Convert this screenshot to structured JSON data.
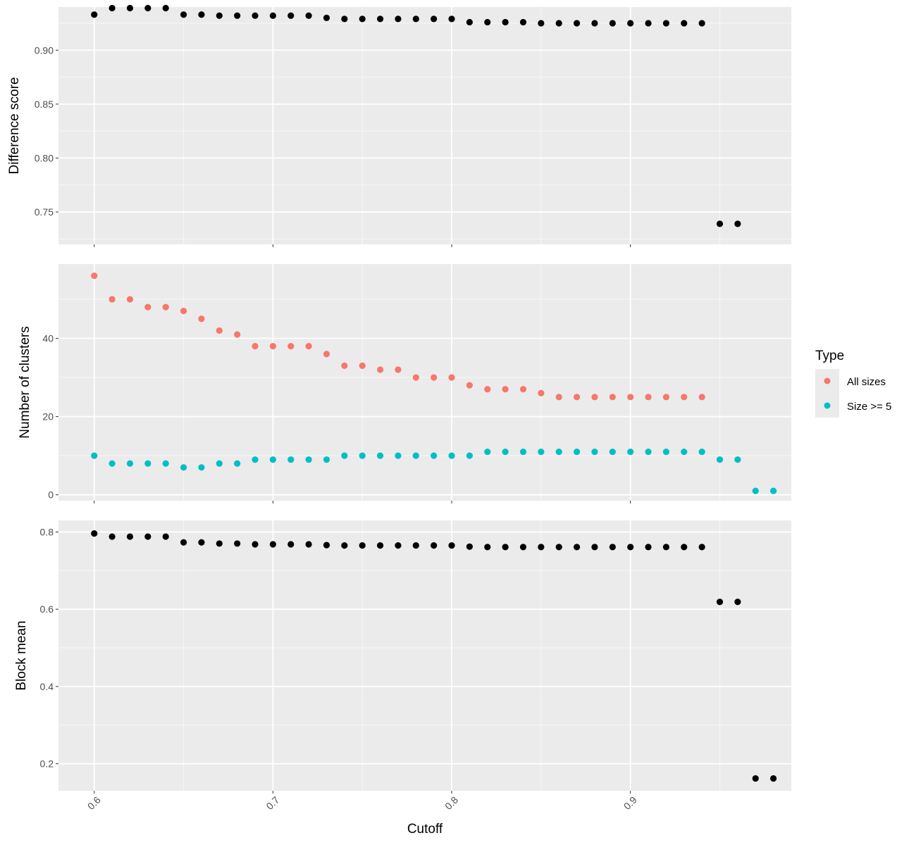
{
  "chart_data": {
    "type": "scatter",
    "x_axis": {
      "title": "Cutoff",
      "range": [
        0.58,
        0.99
      ],
      "ticks": [
        0.6,
        0.7,
        0.8,
        0.9
      ],
      "tick_labels": [
        "0.6",
        "0.7",
        "0.8",
        "0.9"
      ]
    },
    "panels": [
      {
        "ylabel": "Difference score",
        "ylim": [
          0.72,
          0.94
        ],
        "yticks": [
          0.75,
          0.8,
          0.85,
          0.9
        ],
        "ytick_labels": [
          "0.75",
          "0.80",
          "0.85",
          "0.90"
        ],
        "series": [
          {
            "color": "#000000",
            "x": [
              0.6,
              0.61,
              0.62,
              0.63,
              0.64,
              0.65,
              0.66,
              0.67,
              0.68,
              0.69,
              0.7,
              0.71,
              0.72,
              0.73,
              0.74,
              0.75,
              0.76,
              0.77,
              0.78,
              0.79,
              0.8,
              0.81,
              0.82,
              0.83,
              0.84,
              0.85,
              0.86,
              0.87,
              0.88,
              0.89,
              0.9,
              0.91,
              0.92,
              0.93,
              0.94,
              0.95,
              0.96
            ],
            "y": [
              0.933,
              0.939,
              0.939,
              0.939,
              0.939,
              0.933,
              0.933,
              0.932,
              0.932,
              0.932,
              0.932,
              0.932,
              0.932,
              0.93,
              0.929,
              0.929,
              0.929,
              0.929,
              0.929,
              0.929,
              0.929,
              0.926,
              0.926,
              0.926,
              0.926,
              0.925,
              0.925,
              0.925,
              0.925,
              0.925,
              0.925,
              0.925,
              0.925,
              0.925,
              0.925,
              0.739,
              0.739
            ]
          }
        ]
      },
      {
        "ylabel": "Number of clusters",
        "ylim": [
          -1.5,
          59
        ],
        "yticks": [
          0,
          20,
          40
        ],
        "ytick_labels": [
          "0",
          "20",
          "40"
        ],
        "series": [
          {
            "name": "All sizes",
            "color": "#F8766D",
            "x": [
              0.6,
              0.61,
              0.62,
              0.63,
              0.64,
              0.65,
              0.66,
              0.67,
              0.68,
              0.69,
              0.7,
              0.71,
              0.72,
              0.73,
              0.74,
              0.75,
              0.76,
              0.77,
              0.78,
              0.79,
              0.8,
              0.81,
              0.82,
              0.83,
              0.84,
              0.85,
              0.86,
              0.87,
              0.88,
              0.89,
              0.9,
              0.91,
              0.92,
              0.93,
              0.94
            ],
            "y": [
              56,
              50,
              50,
              48,
              48,
              47,
              45,
              42,
              41,
              38,
              38,
              38,
              38,
              36,
              33,
              33,
              32,
              32,
              30,
              30,
              30,
              28,
              27,
              27,
              27,
              26,
              25,
              25,
              25,
              25,
              25,
              25,
              25,
              25,
              25
            ]
          },
          {
            "name": "Size >= 5",
            "color": "#00BFC4",
            "x": [
              0.6,
              0.61,
              0.62,
              0.63,
              0.64,
              0.65,
              0.66,
              0.67,
              0.68,
              0.69,
              0.7,
              0.71,
              0.72,
              0.73,
              0.74,
              0.75,
              0.76,
              0.77,
              0.78,
              0.79,
              0.8,
              0.81,
              0.82,
              0.83,
              0.84,
              0.85,
              0.86,
              0.87,
              0.88,
              0.89,
              0.9,
              0.91,
              0.92,
              0.93,
              0.94,
              0.95,
              0.96,
              0.97,
              0.98
            ],
            "y": [
              10,
              8,
              8,
              8,
              8,
              7,
              7,
              8,
              8,
              9,
              9,
              9,
              9,
              9,
              10,
              10,
              10,
              10,
              10,
              10,
              10,
              10,
              11,
              11,
              11,
              11,
              11,
              11,
              11,
              11,
              11,
              11,
              11,
              11,
              11,
              9,
              9,
              1,
              1
            ]
          }
        ]
      },
      {
        "ylabel": "Block mean",
        "ylim": [
          0.13,
          0.83
        ],
        "yticks": [
          0.2,
          0.4,
          0.6,
          0.8
        ],
        "ytick_labels": [
          "0.2",
          "0.4",
          "0.6",
          "0.8"
        ],
        "series": [
          {
            "color": "#000000",
            "x": [
              0.6,
              0.61,
              0.62,
              0.63,
              0.64,
              0.65,
              0.66,
              0.67,
              0.68,
              0.69,
              0.7,
              0.71,
              0.72,
              0.73,
              0.74,
              0.75,
              0.76,
              0.77,
              0.78,
              0.79,
              0.8,
              0.81,
              0.82,
              0.83,
              0.84,
              0.85,
              0.86,
              0.87,
              0.88,
              0.89,
              0.9,
              0.91,
              0.92,
              0.93,
              0.94,
              0.95,
              0.96,
              0.97,
              0.98
            ],
            "y": [
              0.796,
              0.788,
              0.788,
              0.788,
              0.788,
              0.773,
              0.773,
              0.77,
              0.77,
              0.768,
              0.768,
              0.768,
              0.768,
              0.766,
              0.765,
              0.765,
              0.765,
              0.765,
              0.765,
              0.765,
              0.765,
              0.762,
              0.761,
              0.761,
              0.761,
              0.761,
              0.761,
              0.761,
              0.761,
              0.761,
              0.761,
              0.761,
              0.761,
              0.761,
              0.761,
              0.619,
              0.619,
              0.162,
              0.162
            ]
          }
        ]
      }
    ],
    "legend": {
      "title": "Type",
      "position": "right",
      "entries": [
        {
          "label": "All sizes",
          "color": "#F8766D"
        },
        {
          "label": "Size >= 5",
          "color": "#00BFC4"
        }
      ]
    },
    "grid": true
  }
}
